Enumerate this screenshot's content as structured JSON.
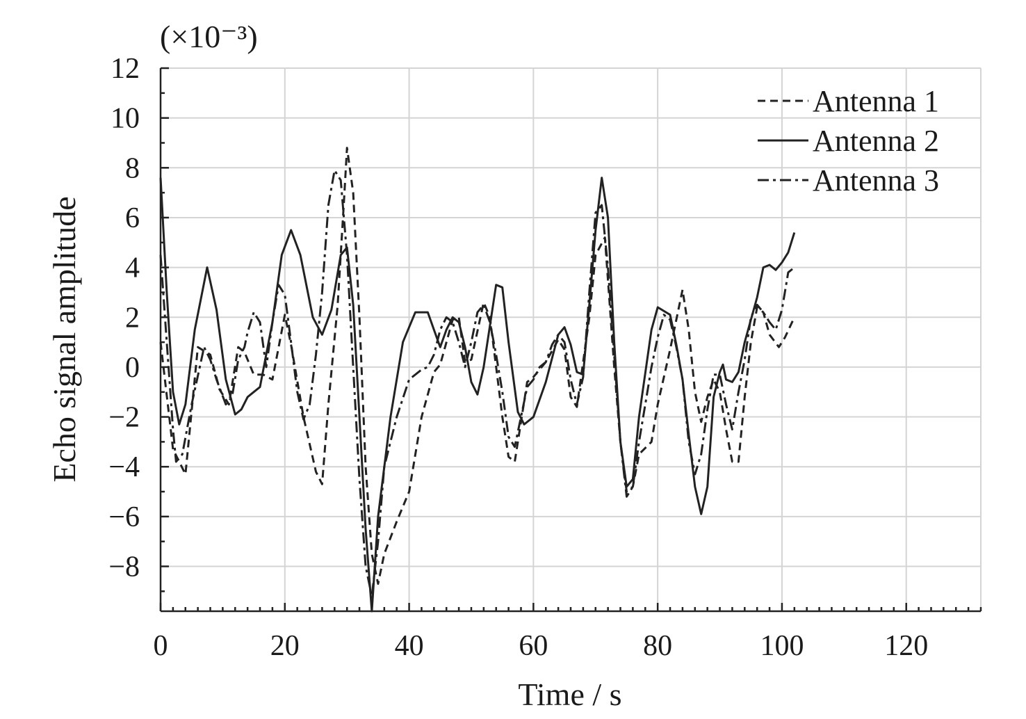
{
  "chart_data": {
    "type": "line",
    "title": "",
    "xlabel": "Time / s",
    "ylabel": "Echo signal amplitude",
    "y_multiplier": "(×10⁻³)",
    "xlim": [
      0,
      132
    ],
    "ylim": [
      -9.8,
      12
    ],
    "x_ticks": [
      0,
      20,
      40,
      60,
      80,
      100,
      120
    ],
    "y_ticks": [
      -8,
      -6,
      -4,
      -2,
      0,
      2,
      4,
      6,
      8,
      10,
      12
    ],
    "grid": true,
    "legend_position": "top-right",
    "series": [
      {
        "name": "Antenna 1",
        "style": "dashed",
        "points": [
          [
            0,
            1
          ],
          [
            2,
            -3.3
          ],
          [
            4,
            -4.3
          ],
          [
            6,
            0.8
          ],
          [
            8,
            0.5
          ],
          [
            9.5,
            -0.9
          ],
          [
            11,
            -1.5
          ],
          [
            12.5,
            0.8
          ],
          [
            13.5,
            0.6
          ],
          [
            15,
            -0.3
          ],
          [
            16.5,
            -0.3
          ],
          [
            18,
            -0.5
          ],
          [
            20,
            2.1
          ],
          [
            21,
            0.9
          ],
          [
            23,
            -2
          ],
          [
            25,
            -4.2
          ],
          [
            26,
            -4.7
          ],
          [
            27,
            -1.5
          ],
          [
            28.5,
            2.5
          ],
          [
            29.5,
            6.6
          ],
          [
            30,
            8.8
          ],
          [
            31,
            7
          ],
          [
            32,
            2
          ],
          [
            33,
            -4
          ],
          [
            34,
            -7.5
          ],
          [
            35,
            -8.7
          ],
          [
            36,
            -7.5
          ],
          [
            38,
            -6.2
          ],
          [
            40,
            -5
          ],
          [
            42,
            -2
          ],
          [
            44,
            -0.2
          ],
          [
            45,
            0.1
          ],
          [
            47,
            1.9
          ],
          [
            48,
            2
          ],
          [
            49,
            0.2
          ],
          [
            50,
            0.3
          ],
          [
            52,
            2.6
          ],
          [
            53,
            2
          ],
          [
            55,
            -2
          ],
          [
            56,
            -3.6
          ],
          [
            57,
            -3.8
          ],
          [
            58,
            -2.2
          ],
          [
            59,
            -0.6
          ],
          [
            60,
            -0.4
          ],
          [
            62,
            0.2
          ],
          [
            64,
            1.1
          ],
          [
            65,
            0.7
          ],
          [
            66,
            -1.2
          ],
          [
            67,
            -1.6
          ],
          [
            68,
            0.2
          ],
          [
            69,
            2
          ],
          [
            70,
            4.5
          ],
          [
            71.5,
            5.2
          ],
          [
            72,
            3.5
          ],
          [
            73,
            0
          ],
          [
            74,
            -3
          ],
          [
            75,
            -5
          ],
          [
            76,
            -4.8
          ],
          [
            77,
            -3.5
          ],
          [
            79,
            -3
          ],
          [
            80,
            -1.5
          ],
          [
            82,
            0.7
          ],
          [
            84,
            3.1
          ],
          [
            85,
            1.5
          ],
          [
            86,
            -1
          ],
          [
            87,
            -2.2
          ],
          [
            88,
            -1.2
          ],
          [
            89,
            -0.5
          ],
          [
            90,
            -1
          ],
          [
            91,
            -2.5
          ],
          [
            92,
            -3.8
          ],
          [
            93,
            -3.8
          ],
          [
            94,
            -1.2
          ],
          [
            95,
            1
          ],
          [
            96,
            2.4
          ],
          [
            97,
            2.2
          ],
          [
            98,
            1.3
          ],
          [
            99.5,
            0.8
          ],
          [
            100.5,
            1.2
          ],
          [
            102,
            2
          ]
        ]
      },
      {
        "name": "Antenna 2",
        "style": "solid",
        "points": [
          [
            0,
            7.6
          ],
          [
            1,
            3
          ],
          [
            2,
            -1
          ],
          [
            3,
            -2.3
          ],
          [
            4,
            -1.5
          ],
          [
            5.5,
            1.5
          ],
          [
            7.5,
            4
          ],
          [
            9,
            2.3
          ],
          [
            10.5,
            -0.5
          ],
          [
            12,
            -1.9
          ],
          [
            13,
            -1.7
          ],
          [
            14,
            -1.2
          ],
          [
            15,
            -1
          ],
          [
            16,
            -0.8
          ],
          [
            18,
            1.8
          ],
          [
            19.5,
            4.5
          ],
          [
            21,
            5.5
          ],
          [
            22.5,
            4.5
          ],
          [
            24.5,
            2
          ],
          [
            26,
            1.3
          ],
          [
            27.5,
            2.3
          ],
          [
            29,
            4.5
          ],
          [
            30,
            4.8
          ],
          [
            31,
            2.5
          ],
          [
            32,
            -2
          ],
          [
            33,
            -6.5
          ],
          [
            34,
            -9.8
          ],
          [
            35,
            -6
          ],
          [
            37,
            -2
          ],
          [
            39,
            1
          ],
          [
            41,
            2.2
          ],
          [
            43,
            2.2
          ],
          [
            44,
            1.5
          ],
          [
            45,
            0.8
          ],
          [
            46,
            1.5
          ],
          [
            47,
            2
          ],
          [
            48,
            1.8
          ],
          [
            49,
            0.8
          ],
          [
            50,
            -0.6
          ],
          [
            51,
            -1.1
          ],
          [
            52,
            0
          ],
          [
            54,
            3.3
          ],
          [
            55,
            3.2
          ],
          [
            56,
            1
          ],
          [
            57.5,
            -1.8
          ],
          [
            58.5,
            -2.3
          ],
          [
            60,
            -2
          ],
          [
            62,
            -0.6
          ],
          [
            64,
            1.3
          ],
          [
            65,
            1.6
          ],
          [
            66,
            0.9
          ],
          [
            67,
            -0.2
          ],
          [
            68,
            -0.3
          ],
          [
            69,
            2.5
          ],
          [
            70,
            5.5
          ],
          [
            71,
            7.6
          ],
          [
            72,
            6
          ],
          [
            73,
            1
          ],
          [
            74,
            -3
          ],
          [
            75,
            -4.8
          ],
          [
            76,
            -4.5
          ],
          [
            77,
            -2
          ],
          [
            79,
            1.5
          ],
          [
            80,
            2.4
          ],
          [
            82,
            2.1
          ],
          [
            83,
            0.9
          ],
          [
            84,
            -0.5
          ],
          [
            85,
            -2.7
          ],
          [
            86,
            -4.8
          ],
          [
            87,
            -5.9
          ],
          [
            88,
            -4.8
          ],
          [
            89,
            -1.2
          ],
          [
            90,
            -0.2
          ],
          [
            90.5,
            0.1
          ],
          [
            91,
            -0.5
          ],
          [
            92,
            -0.6
          ],
          [
            93,
            -0.2
          ],
          [
            94,
            1
          ],
          [
            96,
            2.8
          ],
          [
            97,
            4
          ],
          [
            98,
            4.1
          ],
          [
            99,
            3.9
          ],
          [
            100,
            4.2
          ],
          [
            101,
            4.6
          ],
          [
            102,
            5.4
          ]
        ]
      },
      {
        "name": "Antenna 3",
        "style": "dashdot",
        "points": [
          [
            0,
            4.5
          ],
          [
            1,
            1
          ],
          [
            2,
            -2.5
          ],
          [
            2.5,
            -3.8
          ],
          [
            3.5,
            -3.5
          ],
          [
            5,
            -1.5
          ],
          [
            7,
            0.8
          ],
          [
            8,
            0.3
          ],
          [
            9,
            -0.5
          ],
          [
            10.5,
            -1.5
          ],
          [
            11.5,
            -1.2
          ],
          [
            12.5,
            0.3
          ],
          [
            13.5,
            0.8
          ],
          [
            14,
            1.4
          ],
          [
            15,
            2.2
          ],
          [
            16,
            1.8
          ],
          [
            17,
            0
          ],
          [
            18,
            1.8
          ],
          [
            19,
            3.3
          ],
          [
            20,
            2.9
          ],
          [
            21,
            1
          ],
          [
            22,
            -1
          ],
          [
            23,
            -2.1
          ],
          [
            24,
            -1.5
          ],
          [
            25,
            0.5
          ],
          [
            26,
            3
          ],
          [
            27,
            6.5
          ],
          [
            28,
            7.9
          ],
          [
            29,
            7.5
          ],
          [
            30,
            4.5
          ],
          [
            31,
            0
          ],
          [
            32,
            -4.5
          ],
          [
            33,
            -8
          ],
          [
            34,
            -9.2
          ],
          [
            35,
            -7
          ],
          [
            36,
            -4
          ],
          [
            38,
            -2
          ],
          [
            40,
            -0.5
          ],
          [
            42,
            -0.1
          ],
          [
            43,
            0
          ],
          [
            44,
            0.5
          ],
          [
            45,
            1.5
          ],
          [
            46,
            2
          ],
          [
            47,
            1.8
          ],
          [
            48,
            1
          ],
          [
            49,
            0
          ],
          [
            50,
            1
          ],
          [
            51,
            2.2
          ],
          [
            52,
            2.5
          ],
          [
            53,
            1.8
          ],
          [
            54,
            0.5
          ],
          [
            55,
            -1
          ],
          [
            56,
            -2.8
          ],
          [
            57,
            -3.2
          ],
          [
            58,
            -2
          ],
          [
            59,
            -0.8
          ],
          [
            60,
            -0.5
          ],
          [
            61,
            0
          ],
          [
            62,
            0.2
          ],
          [
            63,
            0.9
          ],
          [
            64,
            1.3
          ],
          [
            65,
            1
          ],
          [
            66,
            -0.5
          ],
          [
            67,
            -1.5
          ],
          [
            68,
            -0.4
          ],
          [
            69,
            3
          ],
          [
            70,
            6.2
          ],
          [
            71,
            6.5
          ],
          [
            72,
            4
          ],
          [
            73,
            0.5
          ],
          [
            74,
            -3
          ],
          [
            75,
            -5.2
          ],
          [
            76,
            -4.8
          ],
          [
            77,
            -3
          ],
          [
            78,
            -1.5
          ],
          [
            79,
            0
          ],
          [
            80,
            1.2
          ],
          [
            81,
            2.1
          ],
          [
            82,
            1.9
          ],
          [
            83,
            0.8
          ],
          [
            84,
            -0.5
          ],
          [
            85,
            -3
          ],
          [
            86,
            -4.3
          ],
          [
            87,
            -3.5
          ],
          [
            88,
            -1.7
          ],
          [
            89,
            -0.3
          ],
          [
            90,
            -0.3
          ],
          [
            91,
            -1.5
          ],
          [
            92,
            -2.5
          ],
          [
            93,
            -1
          ],
          [
            94,
            0.3
          ],
          [
            95,
            2
          ],
          [
            96,
            2.5
          ],
          [
            97,
            2.2
          ],
          [
            98,
            1.8
          ],
          [
            99,
            1.5
          ],
          [
            100,
            2.3
          ],
          [
            101,
            3.8
          ],
          [
            102,
            4
          ]
        ]
      }
    ]
  }
}
